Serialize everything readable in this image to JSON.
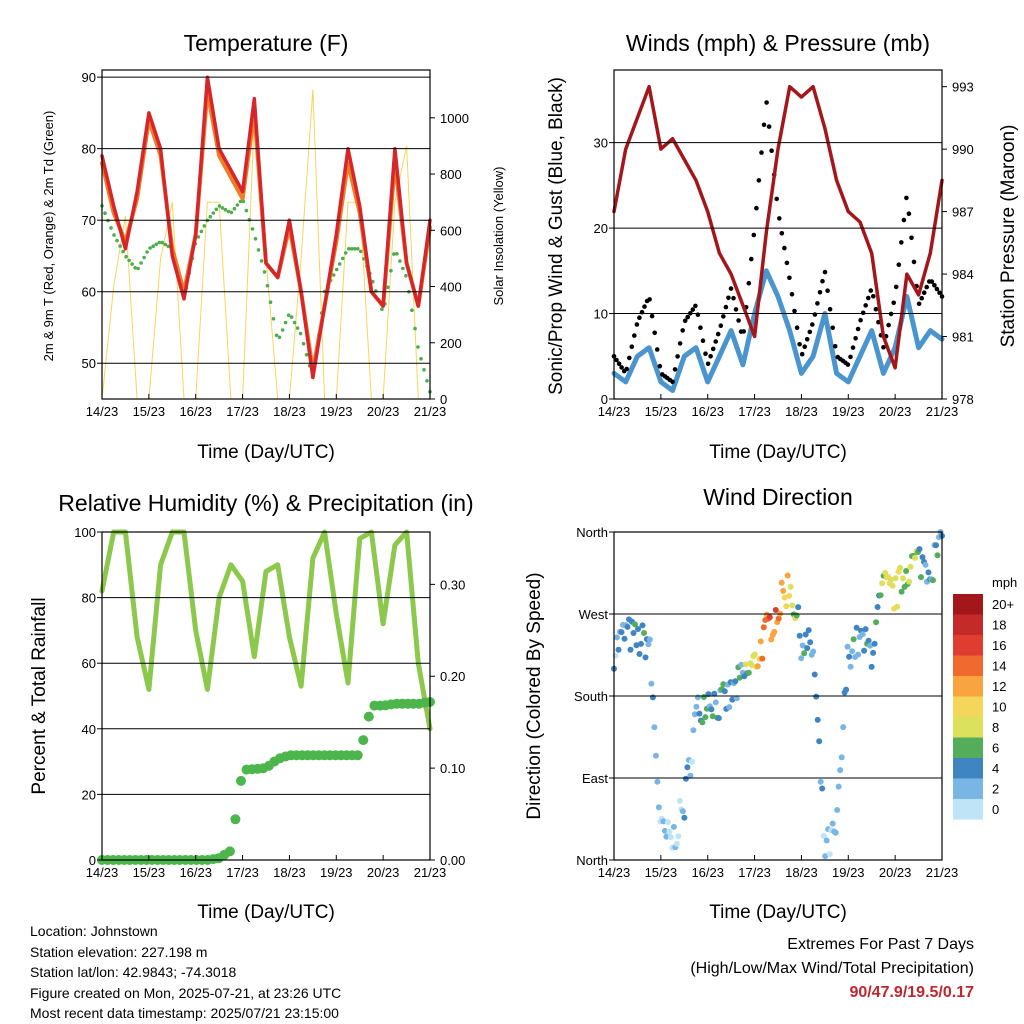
{
  "x_ticks": [
    "14/23",
    "15/23",
    "16/23",
    "17/23",
    "18/23",
    "19/23",
    "20/23",
    "21/23"
  ],
  "x_label": "Time (Day/UTC)",
  "colors": {
    "t2m": "#d7262b",
    "t9m": "#f07d23",
    "td": "#4cae4c",
    "solar": "#f5d65a",
    "gust": "#000000",
    "wind": "#4b95cf",
    "pressure": "#a3171b",
    "rh": "#8cc84b",
    "precip": "#4cb64c",
    "extremes": "#c0272d"
  },
  "chart_data": [
    {
      "type": "line",
      "title": "Temperature (F)",
      "ylabel": "2m & 9m T (Red, Orange) & 2m Td (Green)",
      "y2label": "Solar Insolation (Yellow)",
      "ylim": [
        45,
        91
      ],
      "y2lim": [
        0,
        1170
      ],
      "yticks": [
        50,
        60,
        70,
        80,
        90
      ],
      "y2ticks": [
        0,
        200,
        400,
        600,
        800,
        1000
      ],
      "x_days": [
        0,
        0.25,
        0.5,
        0.75,
        1,
        1.25,
        1.5,
        1.75,
        2,
        2.25,
        2.5,
        2.75,
        3,
        3.25,
        3.5,
        3.75,
        4,
        4.25,
        4.5,
        4.75,
        5,
        5.25,
        5.5,
        5.75,
        6,
        6.25,
        6.5,
        6.75,
        7
      ],
      "series": [
        {
          "key": "t2m",
          "values": [
            79,
            72,
            66,
            74,
            85,
            80,
            65,
            59,
            68,
            90,
            80,
            77,
            74,
            87,
            64,
            62,
            70,
            60,
            48,
            58,
            68,
            80,
            72,
            60,
            58,
            80,
            64,
            58,
            70
          ]
        },
        {
          "key": "t9m",
          "values": [
            78,
            71,
            67,
            73,
            84,
            79,
            66,
            60,
            68,
            88,
            79,
            76,
            73,
            85,
            64,
            62,
            69,
            60,
            49,
            58,
            67,
            78,
            71,
            60,
            58,
            78,
            64,
            58,
            69
          ]
        },
        {
          "key": "td",
          "values": [
            72,
            68,
            65,
            63,
            66,
            67,
            66,
            59,
            67,
            70,
            72,
            71,
            73,
            68,
            62,
            53,
            57,
            54,
            48,
            60,
            63,
            66,
            66,
            62,
            57,
            66,
            62,
            52,
            46
          ]
        },
        {
          "key": "solar",
          "values": [
            0,
            400,
            650,
            0,
            0,
            500,
            700,
            0,
            0,
            700,
            700,
            0,
            0,
            1000,
            500,
            0,
            0,
            500,
            1100,
            0,
            0,
            700,
            700,
            0,
            0,
            700,
            900,
            0,
            0
          ]
        }
      ]
    },
    {
      "type": "line",
      "title": "Winds (mph) & Pressure (mb)",
      "ylabel": "Sonic/Prop Wind & Gust (Blue, Black)",
      "y2label": "Station Pressure (Maroon)",
      "ylim": [
        0,
        38.5
      ],
      "y2lim": [
        978,
        993.8
      ],
      "yticks": [
        0,
        10,
        20,
        30
      ],
      "y2ticks": [
        978,
        981,
        984,
        987,
        990,
        993
      ],
      "x_days": [
        0,
        0.25,
        0.5,
        0.75,
        1,
        1.25,
        1.5,
        1.75,
        2,
        2.25,
        2.5,
        2.75,
        3,
        3.25,
        3.5,
        3.75,
        4,
        4.25,
        4.5,
        4.75,
        5,
        5.25,
        5.5,
        5.75,
        6,
        6.25,
        6.5,
        6.75,
        7
      ],
      "series": [
        {
          "key": "wind",
          "values": [
            3,
            2,
            5,
            6,
            2,
            1,
            5,
            6,
            2,
            5,
            8,
            4,
            10,
            15,
            12,
            8,
            3,
            5,
            10,
            3,
            2,
            5,
            8,
            3,
            6,
            12,
            6,
            8,
            7
          ]
        },
        {
          "key": "gust",
          "values": [
            5,
            3,
            9,
            12,
            3,
            2,
            9,
            11,
            4,
            8,
            13,
            7,
            20,
            35,
            22,
            14,
            5,
            9,
            15,
            5,
            4,
            9,
            13,
            6,
            12,
            24,
            11,
            14,
            12
          ]
        },
        {
          "key": "pressure",
          "values": [
            987,
            990,
            991.5,
            993,
            990,
            990.5,
            989.5,
            988.5,
            987,
            985,
            984,
            982.5,
            981,
            986,
            990,
            993,
            992.5,
            993,
            991,
            988.5,
            987,
            986.5,
            985,
            981,
            979.5,
            984,
            983,
            985,
            988.5
          ]
        }
      ]
    },
    {
      "type": "line",
      "title": "Relative Humidity (%) & Precipitation (in)",
      "ylabel": "Percent & Total Rainfall",
      "ylim": [
        0,
        100
      ],
      "y2lim": [
        0,
        0.357
      ],
      "yticks": [
        0,
        20,
        40,
        60,
        80,
        100
      ],
      "y2ticks": [
        "0.00",
        "0.10",
        "0.20",
        "0.30"
      ],
      "x_days": [
        0,
        0.25,
        0.5,
        0.75,
        1,
        1.25,
        1.5,
        1.75,
        2,
        2.25,
        2.5,
        2.75,
        3,
        3.25,
        3.5,
        3.75,
        4,
        4.25,
        4.5,
        4.75,
        5,
        5.25,
        5.5,
        5.75,
        6,
        6.25,
        6.5,
        6.75,
        7
      ],
      "series": [
        {
          "key": "rh",
          "values": [
            82,
            100,
            100,
            68,
            52,
            90,
            100,
            100,
            70,
            52,
            80,
            90,
            85,
            62,
            88,
            90,
            68,
            53,
            92,
            100,
            75,
            54,
            98,
            100,
            72,
            96,
            100,
            60,
            40
          ]
        },
        {
          "key": "precip",
          "values": [
            0,
            0,
            0,
            0,
            0,
            0,
            0,
            0,
            0,
            0,
            0.002,
            0.01,
            0.098,
            0.099,
            0.1,
            0.11,
            0.114,
            0.114,
            0.114,
            0.114,
            0.114,
            0.114,
            0.114,
            0.168,
            0.168,
            0.17,
            0.17,
            0.17,
            0.172
          ]
        }
      ]
    },
    {
      "type": "scatter",
      "title": "Wind Direction",
      "ylabel": "Direction (Colored By Speed)",
      "ylim": [
        0,
        360
      ],
      "yticks": [
        "North",
        "East",
        "South",
        "West",
        "North"
      ],
      "colorbar_title": "mph",
      "colorbar_labels": [
        "20+",
        "18",
        "16",
        "14",
        "12",
        "10",
        "8",
        "6",
        "4",
        "2",
        "0"
      ],
      "colorbar_colors": [
        "#a3171b",
        "#c42a2a",
        "#e03c2f",
        "#f06a2d",
        "#f9a43e",
        "#f3d65a",
        "#dbe15c",
        "#54ad5a",
        "#3f85c2",
        "#7ab6e3",
        "#bfe3f7"
      ],
      "x_days": [
        0,
        0.25,
        0.5,
        0.75,
        1,
        1.25,
        1.5,
        1.75,
        2,
        2.25,
        2.5,
        2.75,
        3,
        3.25,
        3.5,
        3.75,
        4,
        4.25,
        4.5,
        4.75,
        5,
        5.25,
        5.5,
        5.75,
        6,
        6.25,
        6.5,
        6.75,
        7
      ],
      "series": [
        {
          "key": "direction",
          "values": [
            230,
            250,
            240,
            240,
            30,
            20,
            60,
            160,
            180,
            170,
            180,
            200,
            215,
            250,
            275,
            305,
            240,
            230,
            10,
            30,
            230,
            240,
            230,
            300,
            290,
            320,
            330,
            320,
            350
          ]
        },
        {
          "key": "speed",
          "values": [
            3,
            4,
            6,
            5,
            2,
            2,
            3,
            4,
            5,
            5,
            4,
            5,
            10,
            15,
            15,
            10,
            5,
            4,
            2,
            3,
            4,
            5,
            5,
            9,
            10,
            8,
            6,
            5,
            5
          ]
        }
      ]
    }
  ],
  "info": {
    "location": "Location: Johnstown",
    "elevation": "Station elevation: 227.198 m",
    "latlon": "Station lat/lon: 42.9843; -74.3018",
    "created": "Figure created on Mon, 2025-07-21, at 23:26 UTC",
    "latest": "Most recent data timestamp: 2025/07/21 23:15:00"
  },
  "extremes": {
    "title": "Extremes For Past 7 Days",
    "subtitle": "(High/Low/Max Wind/Total Precipitation)",
    "values": "90/47.9/19.5/0.17"
  }
}
